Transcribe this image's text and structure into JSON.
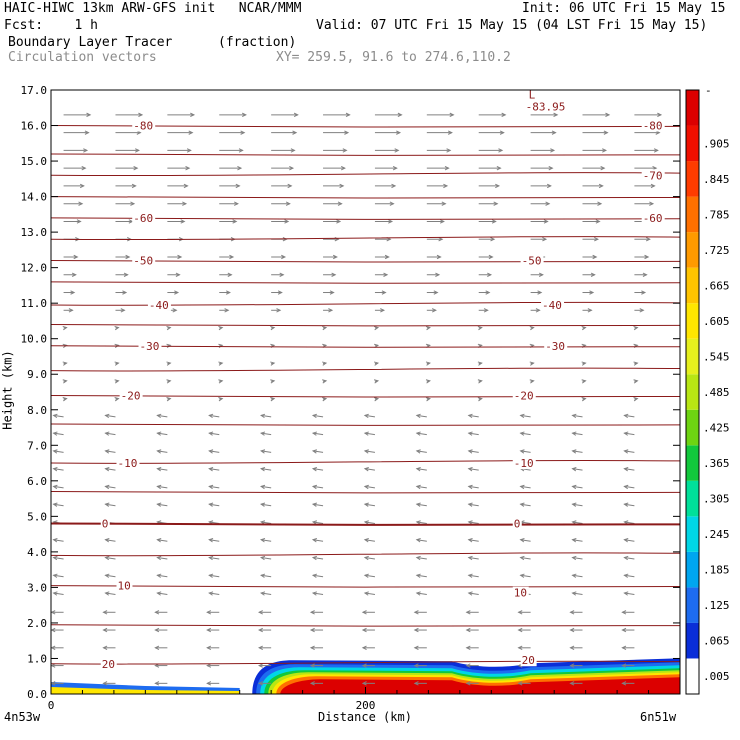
{
  "header": {
    "line1_left": "HAIC-HIWC 13km ARW-GFS init   NCAR/MMM",
    "line1_right": "Init: 06 UTC Fri 15 May 15",
    "line2_left": "Fcst:    1 h",
    "line2_right": "Valid: 07 UTC Fri 15 May 15 (04 LST Fri 15 May 15)",
    "line3_field": "Boundary Layer Tracer",
    "line3_units": "(fraction)",
    "line4_vectors": "Circulation vectors",
    "line4_xy": "XY= 259.5, 91.6 to 274.6,110.2"
  },
  "colors": {
    "contour": "#8b1a1a",
    "vector": "#808080",
    "colorbar": [
      "#ffffff",
      "#0a2ed8",
      "#1e6cf0",
      "#00a6f0",
      "#00d6e6",
      "#00e09a",
      "#12c83c",
      "#6ed412",
      "#b8e614",
      "#e6f01e",
      "#ffe600",
      "#ffc400",
      "#ff9a00",
      "#ff7000",
      "#ff3c00",
      "#f01000",
      "#dc0000"
    ]
  },
  "chart_data": {
    "type": "cross-section",
    "title": "Boundary Layer Tracer",
    "xlabel": "Distance (km)",
    "ylabel": "Height (km)",
    "xlim": [
      0,
      400
    ],
    "ylim": [
      0,
      17
    ],
    "x_ticks": [
      "0",
      "200"
    ],
    "x_end_labels": [
      "4n53w",
      "6n51w"
    ],
    "y_ticks": [
      "0.0",
      "1.0",
      "2.0",
      "3.0",
      "4.0",
      "5.0",
      "6.0",
      "7.0",
      "8.0",
      "9.0",
      "10.0",
      "11.0",
      "12.0",
      "13.0",
      "14.0",
      "15.0",
      "16.0",
      "17.0"
    ],
    "colorbar_labels": [
      ".005",
      ".065",
      ".125",
      ".185",
      ".245",
      ".305",
      ".365",
      ".425",
      ".485",
      ".545",
      ".605",
      ".665",
      ".725",
      ".785",
      ".845",
      ".905"
    ],
    "colorbar_top_label": "-",
    "contour_labels": [
      {
        "text": "20",
        "x": 38,
        "y": 0.85
      },
      {
        "text": "20",
        "x": 305,
        "y": 0.95
      },
      {
        "text": "10",
        "x": 48,
        "y": 3.05
      },
      {
        "text": "10",
        "x": 300,
        "y": 2.85
      },
      {
        "text": "0",
        "x": 38,
        "y": 4.8
      },
      {
        "text": "0",
        "x": 300,
        "y": 4.8
      },
      {
        "text": "-10",
        "x": 48,
        "y": 6.5
      },
      {
        "text": "-10",
        "x": 300,
        "y": 6.5
      },
      {
        "text": "-20",
        "x": 50,
        "y": 8.4
      },
      {
        "text": "-20",
        "x": 300,
        "y": 8.4
      },
      {
        "text": "-30",
        "x": 62,
        "y": 9.8
      },
      {
        "text": "-30",
        "x": 320,
        "y": 9.8
      },
      {
        "text": "-40",
        "x": 68,
        "y": 10.95
      },
      {
        "text": "-40",
        "x": 318,
        "y": 10.95
      },
      {
        "text": "-50",
        "x": 58,
        "y": 12.2
      },
      {
        "text": "-50",
        "x": 305,
        "y": 12.2
      },
      {
        "text": "-60",
        "x": 58,
        "y": 13.4
      },
      {
        "text": "-60",
        "x": 382,
        "y": 13.4
      },
      {
        "text": "-70",
        "x": 382,
        "y": 14.6
      },
      {
        "text": "-80",
        "x": 58,
        "y": 16.0
      },
      {
        "text": "-80",
        "x": 382,
        "y": 16.0
      }
    ],
    "min_label": {
      "mark": "L",
      "value": "-83.95",
      "x": 305,
      "y": 16.65
    },
    "tracer_region": {
      "x_start": 128,
      "x_end": 400,
      "top_km": 0.95,
      "value": ">0.905"
    }
  }
}
